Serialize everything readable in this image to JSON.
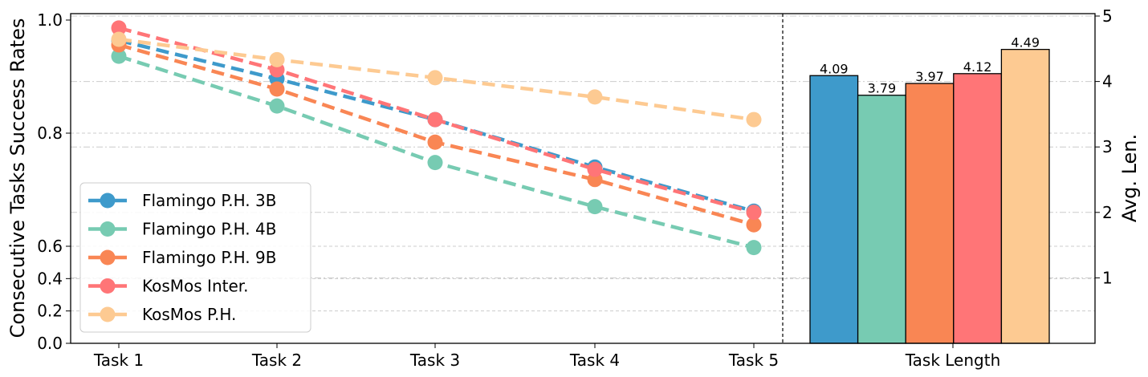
{
  "chart_data": {
    "type": "line",
    "left_panel": {
      "categories": [
        "Task 1",
        "Task 2",
        "Task 3",
        "Task 4",
        "Task 5"
      ],
      "ylabel": "Consecutive Tasks Success Rates",
      "ylim": [
        0,
        1.0
      ],
      "yticks": [
        "0.0",
        "0.2",
        "0.4",
        "0.6",
        "0.8",
        "1.0"
      ],
      "legend_position": "lower-left",
      "series": [
        {
          "name": "Flamingo P.H. 3B",
          "color": "#3E9ACB",
          "values": [
            0.964,
            0.896,
            0.824,
            0.74,
            0.662
          ]
        },
        {
          "name": "Flamingo P.H. 4B",
          "color": "#77CBB2",
          "values": [
            0.936,
            0.848,
            0.748,
            0.67,
            0.592
          ]
        },
        {
          "name": "Flamingo P.H. 9B",
          "color": "#F98654",
          "values": [
            0.956,
            0.878,
            0.784,
            0.718,
            0.638
          ]
        },
        {
          "name": "KosMos Inter.",
          "color": "#FF7577",
          "values": [
            0.986,
            0.912,
            0.824,
            0.736,
            0.66
          ]
        },
        {
          "name": "KosMos P.H.",
          "color": "#FDCA92",
          "values": [
            0.966,
            0.93,
            0.898,
            0.864,
            0.824
          ]
        }
      ]
    },
    "right_panel": {
      "type": "bar",
      "xlabel": "Task Length",
      "ylabel": "Avg. Len.",
      "ylim": [
        0,
        5
      ],
      "yticks": [
        "1",
        "2",
        "3",
        "4",
        "5"
      ],
      "bars": [
        {
          "series": "Flamingo P.H. 3B",
          "color": "#3E9ACB",
          "value": 4.09,
          "label": "4.09"
        },
        {
          "series": "Flamingo P.H. 4B",
          "color": "#77CBB2",
          "value": 3.79,
          "label": "3.79"
        },
        {
          "series": "Flamingo P.H. 9B",
          "color": "#F98654",
          "value": 3.97,
          "label": "3.97"
        },
        {
          "series": "KosMos Inter.",
          "color": "#FF7577",
          "value": 4.12,
          "label": "4.12"
        },
        {
          "series": "KosMos P.H.",
          "color": "#FDCA92",
          "value": 4.49,
          "label": "4.49"
        }
      ]
    }
  }
}
